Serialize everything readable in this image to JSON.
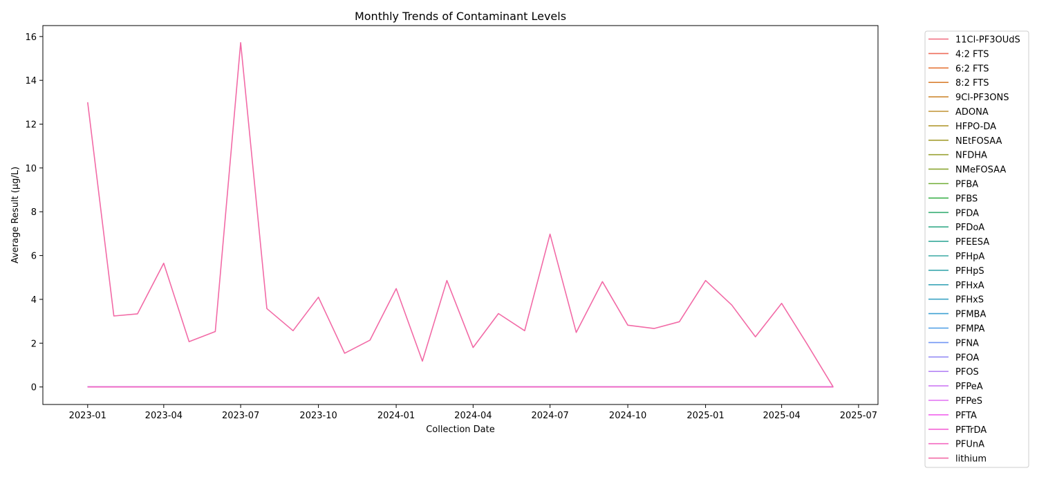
{
  "chart_data": {
    "type": "line",
    "title": "Monthly Trends of Contaminant Levels",
    "xlabel": "Collection Date",
    "ylabel": "Average Result (µg/L)",
    "xlim": [
      "2022-11-09",
      "2025-07-24"
    ],
    "ylim": [
      -0.8,
      16.5
    ],
    "x_ticks": [
      "2023-01",
      "2023-04",
      "2023-07",
      "2023-10",
      "2024-01",
      "2024-04",
      "2024-07",
      "2024-10",
      "2025-01",
      "2025-04",
      "2025-07"
    ],
    "y_ticks": [
      0,
      2,
      4,
      6,
      8,
      10,
      12,
      14,
      16
    ],
    "grid": false,
    "legend_position": "outside-right",
    "x": [
      "2023-01-01",
      "2023-02-01",
      "2023-03-01",
      "2023-04-01",
      "2023-05-01",
      "2023-06-01",
      "2023-07-01",
      "2023-08-01",
      "2023-09-01",
      "2023-10-01",
      "2023-11-01",
      "2023-12-01",
      "2024-01-01",
      "2024-02-01",
      "2024-03-01",
      "2024-04-01",
      "2024-05-01",
      "2024-06-01",
      "2024-07-01",
      "2024-08-01",
      "2024-09-01",
      "2024-10-01",
      "2024-11-01",
      "2024-12-01",
      "2025-01-01",
      "2025-02-01",
      "2025-03-01",
      "2025-04-01",
      "2025-05-01",
      "2025-06-01"
    ],
    "series": [
      {
        "name": "11Cl-PF3OUdS",
        "color": "#f0697d",
        "values": [
          0,
          0,
          0,
          0,
          0,
          0,
          0,
          0,
          0,
          0,
          0,
          0,
          0,
          0,
          0,
          0,
          0,
          0,
          0,
          0,
          0,
          0,
          0,
          0,
          0,
          0,
          0,
          0,
          0,
          0
        ]
      },
      {
        "name": "4:2 FTS",
        "color": "#ee6c5a",
        "values": [
          0,
          0,
          0,
          0,
          0,
          0,
          0,
          0,
          0,
          0,
          0,
          0,
          0,
          0,
          0,
          0,
          0,
          0,
          0,
          0,
          0,
          0,
          0,
          0,
          0,
          0,
          0,
          0,
          0,
          0
        ]
      },
      {
        "name": "6:2 FTS",
        "color": "#e57539",
        "values": [
          0,
          0,
          0,
          0,
          0,
          0,
          0,
          0,
          0,
          0,
          0,
          0,
          0,
          0,
          0,
          0,
          0,
          0,
          0,
          0,
          0,
          0,
          0,
          0,
          0,
          0,
          0,
          0,
          0,
          0
        ]
      },
      {
        "name": "8:2 FTS",
        "color": "#d98032",
        "values": [
          0,
          0,
          0,
          0,
          0,
          0,
          0,
          0,
          0,
          0,
          0,
          0,
          0,
          0,
          0,
          0,
          0,
          0,
          0,
          0,
          0,
          0,
          0,
          0,
          0,
          0,
          0,
          0,
          0,
          0
        ]
      },
      {
        "name": "9Cl-PF3ONS",
        "color": "#cd8a32",
        "values": [
          0,
          0,
          0,
          0,
          0,
          0,
          0,
          0,
          0,
          0,
          0,
          0,
          0,
          0,
          0,
          0,
          0,
          0,
          0,
          0,
          0,
          0,
          0,
          0,
          0,
          0,
          0,
          0,
          0,
          0
        ]
      },
      {
        "name": "ADONA",
        "color": "#c09232",
        "values": [
          0,
          0,
          0,
          0,
          0,
          0,
          0,
          0,
          0,
          0,
          0,
          0,
          0,
          0,
          0,
          0,
          0,
          0,
          0,
          0,
          0,
          0,
          0,
          0,
          0,
          0,
          0,
          0,
          0,
          0
        ]
      },
      {
        "name": "HFPO-DA",
        "color": "#b39a32",
        "values": [
          0,
          0,
          0,
          0,
          0,
          0,
          0,
          0,
          0,
          0,
          0,
          0,
          0,
          0,
          0,
          0,
          0,
          0,
          0,
          0,
          0,
          0,
          0,
          0,
          0,
          0,
          0,
          0,
          0,
          0
        ]
      },
      {
        "name": "NEtFOSAA",
        "color": "#a59e32",
        "values": [
          0,
          0,
          0,
          0,
          0,
          0,
          0,
          0,
          0,
          0,
          0,
          0,
          0,
          0,
          0,
          0,
          0,
          0,
          0,
          0,
          0,
          0,
          0,
          0,
          0,
          0,
          0,
          0,
          0,
          0
        ]
      },
      {
        "name": "NFDHA",
        "color": "#99a233",
        "values": [
          0,
          0,
          0,
          0,
          0,
          0,
          0,
          0,
          0,
          0,
          0,
          0,
          0,
          0,
          0,
          0,
          0,
          0,
          0,
          0,
          0,
          0,
          0,
          0,
          0,
          0,
          0,
          0,
          0,
          0
        ]
      },
      {
        "name": "NMeFOSAA",
        "color": "#8aa633",
        "values": [
          0,
          0,
          0,
          0,
          0,
          0,
          0,
          0,
          0,
          0,
          0,
          0,
          0,
          0,
          0,
          0,
          0,
          0,
          0,
          0,
          0,
          0,
          0,
          0,
          0,
          0,
          0,
          0,
          0,
          0
        ]
      },
      {
        "name": "PFBA",
        "color": "#6fac32",
        "values": [
          0,
          0,
          0,
          0,
          0,
          0,
          0,
          0,
          0,
          0,
          0,
          0,
          0,
          0,
          0,
          0,
          0,
          0,
          0,
          0,
          0,
          0,
          0,
          0,
          0,
          0,
          0,
          0,
          0,
          0
        ]
      },
      {
        "name": "PFBS",
        "color": "#3bb04a",
        "values": [
          0,
          0,
          0,
          0,
          0,
          0,
          0,
          0,
          0,
          0,
          0,
          0,
          0,
          0,
          0,
          0,
          0,
          0,
          0,
          0,
          0,
          0,
          0,
          0,
          0,
          0,
          0,
          0,
          0,
          0
        ]
      },
      {
        "name": "PFDA",
        "color": "#35ad72",
        "values": [
          0,
          0,
          0,
          0,
          0,
          0,
          0,
          0,
          0,
          0,
          0,
          0,
          0,
          0,
          0,
          0,
          0,
          0,
          0,
          0,
          0,
          0,
          0,
          0,
          0,
          0,
          0,
          0,
          0,
          0
        ]
      },
      {
        "name": "PFDoA",
        "color": "#36ab89",
        "values": [
          0,
          0,
          0,
          0,
          0,
          0,
          0,
          0,
          0,
          0,
          0,
          0,
          0,
          0,
          0,
          0,
          0,
          0,
          0,
          0,
          0,
          0,
          0,
          0,
          0,
          0,
          0,
          0,
          0,
          0
        ]
      },
      {
        "name": "PFEESA",
        "color": "#37a999",
        "values": [
          0,
          0,
          0,
          0,
          0,
          0,
          0,
          0,
          0,
          0,
          0,
          0,
          0,
          0,
          0,
          0,
          0,
          0,
          0,
          0,
          0,
          0,
          0,
          0,
          0,
          0,
          0,
          0,
          0,
          0
        ]
      },
      {
        "name": "PFHpA",
        "color": "#38a8a4",
        "values": [
          0,
          0,
          0,
          0,
          0,
          0,
          0,
          0,
          0,
          0,
          0,
          0,
          0,
          0,
          0,
          0,
          0,
          0,
          0,
          0,
          0,
          0,
          0,
          0,
          0,
          0,
          0,
          0,
          0,
          0
        ]
      },
      {
        "name": "PFHpS",
        "color": "#39a7ae",
        "values": [
          0,
          0,
          0,
          0,
          0,
          0,
          0,
          0,
          0,
          0,
          0,
          0,
          0,
          0,
          0,
          0,
          0,
          0,
          0,
          0,
          0,
          0,
          0,
          0,
          0,
          0,
          0,
          0,
          0,
          0
        ]
      },
      {
        "name": "PFHxA",
        "color": "#3aa5b8",
        "values": [
          0,
          0,
          0,
          0,
          0,
          0,
          0,
          0,
          0,
          0,
          0,
          0,
          0,
          0,
          0,
          0,
          0,
          0,
          0,
          0,
          0,
          0,
          0,
          0,
          0,
          0,
          0,
          0,
          0,
          0
        ]
      },
      {
        "name": "PFHxS",
        "color": "#3ca3c4",
        "values": [
          0,
          0,
          0,
          0,
          0,
          0,
          0,
          0,
          0,
          0,
          0,
          0,
          0,
          0,
          0,
          0,
          0,
          0,
          0,
          0,
          0,
          0,
          0,
          0,
          0,
          0,
          0,
          0,
          0,
          0
        ]
      },
      {
        "name": "PFMBA",
        "color": "#3ea0d2",
        "values": [
          0,
          0,
          0,
          0,
          0,
          0,
          0,
          0,
          0,
          0,
          0,
          0,
          0,
          0,
          0,
          0,
          0,
          0,
          0,
          0,
          0,
          0,
          0,
          0,
          0,
          0,
          0,
          0,
          0,
          0
        ]
      },
      {
        "name": "PFMPA",
        "color": "#4a9ce6",
        "values": [
          0,
          0,
          0,
          0,
          0,
          0,
          0,
          0,
          0,
          0,
          0,
          0,
          0,
          0,
          0,
          0,
          0,
          0,
          0,
          0,
          0,
          0,
          0,
          0,
          0,
          0,
          0,
          0,
          0,
          0
        ]
      },
      {
        "name": "PFNA",
        "color": "#7196f4",
        "values": [
          0,
          0,
          0,
          0,
          0,
          0,
          0,
          0,
          0,
          0,
          0,
          0,
          0,
          0,
          0,
          0,
          0,
          0,
          0,
          0,
          0,
          0,
          0,
          0,
          0,
          0,
          0,
          0,
          0,
          0
        ]
      },
      {
        "name": "PFOA",
        "color": "#958df5",
        "values": [
          0,
          0,
          0,
          0,
          0,
          0,
          0,
          0,
          0,
          0,
          0,
          0,
          0,
          0,
          0,
          0,
          0,
          0,
          0,
          0,
          0,
          0,
          0,
          0,
          0,
          0,
          0,
          0,
          0,
          0
        ]
      },
      {
        "name": "PFOS",
        "color": "#b584f5",
        "values": [
          0,
          0,
          0,
          0,
          0,
          0,
          0,
          0,
          0,
          0,
          0,
          0,
          0,
          0,
          0,
          0,
          0,
          0,
          0,
          0,
          0,
          0,
          0,
          0,
          0,
          0,
          0,
          0,
          0,
          0
        ]
      },
      {
        "name": "PFPeA",
        "color": "#cd79f4",
        "values": [
          0,
          0,
          0,
          0,
          0,
          0,
          0,
          0,
          0,
          0,
          0,
          0,
          0,
          0,
          0,
          0,
          0,
          0,
          0,
          0,
          0,
          0,
          0,
          0,
          0,
          0,
          0,
          0,
          0,
          0
        ]
      },
      {
        "name": "PFPeS",
        "color": "#e16ef3",
        "values": [
          0,
          0,
          0,
          0,
          0,
          0,
          0,
          0,
          0,
          0,
          0,
          0,
          0,
          0,
          0,
          0,
          0,
          0,
          0,
          0,
          0,
          0,
          0,
          0,
          0,
          0,
          0,
          0,
          0,
          0
        ]
      },
      {
        "name": "PFTA",
        "color": "#f262ed",
        "values": [
          0,
          0,
          0,
          0,
          0,
          0,
          0,
          0,
          0,
          0,
          0,
          0,
          0,
          0,
          0,
          0,
          0,
          0,
          0,
          0,
          0,
          0,
          0,
          0,
          0,
          0,
          0,
          0,
          0,
          0
        ]
      },
      {
        "name": "PFTrDA",
        "color": "#f365d6",
        "values": [
          0,
          0,
          0,
          0,
          0,
          0,
          0,
          0,
          0,
          0,
          0,
          0,
          0,
          0,
          0,
          0,
          0,
          0,
          0,
          0,
          0,
          0,
          0,
          0,
          0,
          0,
          0,
          0,
          0,
          0
        ]
      },
      {
        "name": "PFUnA",
        "color": "#f367c0",
        "values": [
          0,
          0,
          0,
          0,
          0,
          0,
          0,
          0,
          0,
          0,
          0,
          0,
          0,
          0,
          0,
          0,
          0,
          0,
          0,
          0,
          0,
          0,
          0,
          0,
          0,
          0,
          0,
          0,
          0,
          0
        ]
      },
      {
        "name": "lithium",
        "color": "#f26aa6",
        "values": [
          13.0,
          3.24,
          3.34,
          5.65,
          2.07,
          2.53,
          15.72,
          3.58,
          2.57,
          4.1,
          1.54,
          2.14,
          4.49,
          1.18,
          4.86,
          1.8,
          3.35,
          2.57,
          6.98,
          2.49,
          4.81,
          2.82,
          2.67,
          2.98,
          4.86,
          3.74,
          2.29,
          3.82,
          1.97,
          0.0
        ]
      }
    ]
  }
}
